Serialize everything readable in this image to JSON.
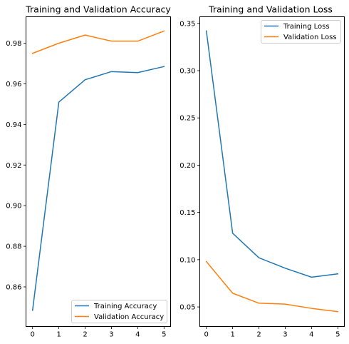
{
  "chart_data": [
    {
      "type": "line",
      "title": "Training and Validation Accuracy",
      "xlabel": "",
      "ylabel": "",
      "x": [
        0,
        1,
        2,
        3,
        4,
        5
      ],
      "xticks": [
        0,
        1,
        2,
        3,
        4,
        5
      ],
      "xlim": [
        -0.25,
        5.25
      ],
      "ylim": [
        0.8405,
        0.993
      ],
      "yticks": [
        0.86,
        0.88,
        0.9,
        0.92,
        0.94,
        0.96,
        0.98
      ],
      "ytick_labels": [
        "0.86",
        "0.88",
        "0.90",
        "0.92",
        "0.94",
        "0.96",
        "0.98"
      ],
      "grid": false,
      "legend_position": "lower-right",
      "series": [
        {
          "name": "Training Accuracy",
          "color": "#1f77b4",
          "values": [
            0.8485,
            0.951,
            0.962,
            0.966,
            0.9655,
            0.9685
          ]
        },
        {
          "name": "Validation Accuracy",
          "color": "#ff7f0e",
          "values": [
            0.975,
            0.98,
            0.984,
            0.981,
            0.981,
            0.986
          ]
        }
      ]
    },
    {
      "type": "line",
      "title": "Training and Validation Loss",
      "xlabel": "",
      "ylabel": "",
      "x": [
        0,
        1,
        2,
        3,
        4,
        5
      ],
      "xticks": [
        0,
        1,
        2,
        3,
        4,
        5
      ],
      "xlim": [
        -0.25,
        5.25
      ],
      "ylim": [
        0.0293,
        0.357
      ],
      "yticks": [
        0.05,
        0.1,
        0.15,
        0.2,
        0.25,
        0.3,
        0.35
      ],
      "ytick_labels": [
        "0.05",
        "0.10",
        "0.15",
        "0.20",
        "0.25",
        "0.30",
        "0.35"
      ],
      "grid": false,
      "legend_position": "upper-right",
      "series": [
        {
          "name": "Training Loss",
          "color": "#1f77b4",
          "values": [
            0.342,
            0.128,
            0.102,
            0.091,
            0.0815,
            0.085
          ]
        },
        {
          "name": "Validation Loss",
          "color": "#ff7f0e",
          "values": [
            0.098,
            0.0645,
            0.054,
            0.053,
            0.0485,
            0.045
          ]
        }
      ]
    }
  ]
}
